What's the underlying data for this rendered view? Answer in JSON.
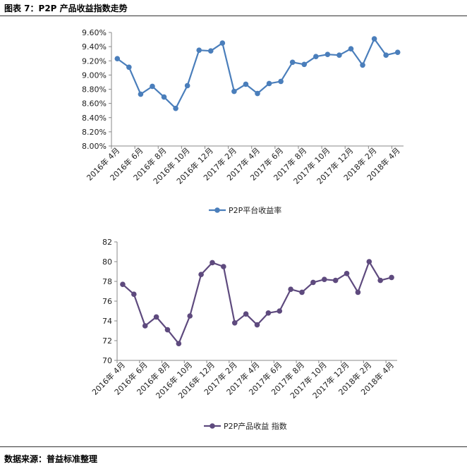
{
  "header": {
    "figure_title": "图表 7：P2P 产品收益指数走势"
  },
  "footer": {
    "source": "数据来源：普益标准整理"
  },
  "chart_data": [
    {
      "type": "line",
      "title": "",
      "xlabel": "",
      "ylabel": "",
      "ylim": [
        8.0,
        9.6
      ],
      "y_ticks": [
        "8.00%",
        "8.20%",
        "8.40%",
        "8.60%",
        "8.80%",
        "9.00%",
        "9.20%",
        "9.40%",
        "9.60%"
      ],
      "x_tick_labels": [
        "2016年 4月",
        "2016年 6月",
        "2016年 8月",
        "2016年 10月",
        "2016年 12月",
        "2017年 2月",
        "2017年 4月",
        "2017年 6月",
        "2017年 8月",
        "2017年 10月",
        "2017年 12月",
        "2018年 2月",
        "2018年 4月"
      ],
      "categories": [
        "2016-04",
        "2016-05",
        "2016-06",
        "2016-07",
        "2016-08",
        "2016-09",
        "2016-10",
        "2016-11",
        "2016-12",
        "2017-01",
        "2017-02",
        "2017-03",
        "2017-04",
        "2017-05",
        "2017-06",
        "2017-07",
        "2017-08",
        "2017-09",
        "2017-10",
        "2017-11",
        "2017-12",
        "2018-01",
        "2018-02",
        "2018-03",
        "2018-04"
      ],
      "series": [
        {
          "name": "P2P平台收益率",
          "color": "#4a7ebb",
          "values": [
            9.23,
            9.11,
            8.73,
            8.84,
            8.69,
            8.53,
            8.85,
            9.35,
            9.34,
            9.45,
            8.77,
            8.87,
            8.74,
            8.88,
            8.91,
            9.18,
            9.15,
            9.26,
            9.29,
            9.28,
            9.37,
            9.14,
            9.51,
            9.28,
            9.32
          ]
        }
      ],
      "legend_position": "bottom"
    },
    {
      "type": "line",
      "title": "",
      "xlabel": "",
      "ylabel": "",
      "ylim": [
        70,
        82
      ],
      "y_ticks": [
        "70",
        "72",
        "74",
        "76",
        "78",
        "80",
        "82"
      ],
      "x_tick_labels": [
        "2016年 4月",
        "2016年 6月",
        "2016年 8月",
        "2016年 10月",
        "2016年 12月",
        "2017年 2月",
        "2017年 4月",
        "2017年 6月",
        "2017年 8月",
        "2017年 10月",
        "2017年 12月",
        "2018年 2月",
        "2018年 4月"
      ],
      "categories": [
        "2016-04",
        "2016-05",
        "2016-06",
        "2016-07",
        "2016-08",
        "2016-09",
        "2016-10",
        "2016-11",
        "2016-12",
        "2017-01",
        "2017-02",
        "2017-03",
        "2017-04",
        "2017-05",
        "2017-06",
        "2017-07",
        "2017-08",
        "2017-09",
        "2017-10",
        "2017-11",
        "2017-12",
        "2018-01",
        "2018-02",
        "2018-03",
        "2018-04"
      ],
      "series": [
        {
          "name": "P2P产品收益 指数",
          "color": "#5e4a7e",
          "values": [
            77.7,
            76.7,
            73.5,
            74.4,
            73.1,
            71.7,
            74.5,
            78.7,
            79.9,
            79.5,
            73.8,
            74.7,
            73.6,
            74.8,
            75.0,
            77.2,
            76.9,
            77.9,
            78.2,
            78.1,
            78.8,
            76.9,
            80.0,
            78.1,
            78.4
          ]
        }
      ],
      "legend_position": "bottom"
    }
  ]
}
